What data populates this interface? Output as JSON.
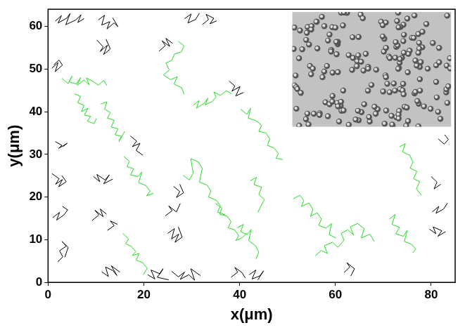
{
  "chart_data": {
    "type": "line",
    "xlabel": "x(μm)",
    "ylabel": "y(μm)",
    "xlim": [
      0,
      85
    ],
    "ylim": [
      0,
      64
    ],
    "xticks": [
      0,
      20,
      40,
      60,
      80
    ],
    "yticks": [
      0,
      10,
      20,
      30,
      40,
      50,
      60
    ],
    "grid": false,
    "series": [
      {
        "color": "#000000",
        "x": [
          1.5,
          2.8,
          2.1,
          3.9,
          4.6,
          3.7,
          5.8,
          6.9,
          6.2,
          7.5
        ],
        "values": [
          61.2,
          62.5,
          60.8,
          61.9,
          63.0,
          60.4,
          61.5,
          62.7,
          60.9,
          61.8
        ]
      },
      {
        "color": "#000000",
        "x": [
          10.5,
          11.8,
          11.2,
          12.9,
          12.3,
          13.8,
          14.6,
          13.5
        ],
        "values": [
          61.5,
          62.6,
          60.3,
          61.1,
          59.4,
          60.8,
          59.9,
          62.0
        ]
      },
      {
        "color": "#000000",
        "x": [
          10.2,
          11.5,
          10.9,
          12.4,
          11.6,
          13.0,
          12.1
        ],
        "values": [
          56.8,
          55.2,
          54.1,
          55.6,
          53.4,
          54.7,
          57.0
        ]
      },
      {
        "color": "#000000",
        "x": [
          0.8,
          2.1,
          1.5,
          3.0,
          2.3,
          1.2
        ],
        "values": [
          50.2,
          51.5,
          49.4,
          50.9,
          52.1,
          51.0
        ]
      },
      {
        "color": "#000000",
        "x": [
          1.5,
          2.9,
          2.2,
          4.0,
          3.1
        ],
        "values": [
          33.0,
          32.1,
          31.4,
          32.6,
          31.8
        ]
      },
      {
        "color": "#000000",
        "x": [
          0.8,
          2.3,
          1.6,
          3.0,
          2.2,
          3.8,
          2.9
        ],
        "values": [
          25.5,
          24.3,
          23.0,
          24.1,
          22.4,
          23.6,
          25.0
        ]
      },
      {
        "color": "#000000",
        "x": [
          9.5,
          10.8,
          10.2,
          11.9,
          12.8,
          11.6,
          13.5
        ],
        "values": [
          24.8,
          23.6,
          25.3,
          24.0,
          25.2,
          23.1,
          24.2
        ]
      },
      {
        "color": "#000000",
        "x": [
          1.0,
          2.4,
          1.8,
          3.3,
          4.1,
          3.0
        ],
        "values": [
          15.2,
          16.4,
          14.6,
          15.8,
          17.0,
          17.8
        ]
      },
      {
        "color": "#000000",
        "x": [
          9.2,
          10.6,
          9.8,
          11.5,
          10.9,
          12.2
        ],
        "values": [
          14.5,
          15.8,
          16.9,
          15.4,
          17.2,
          16.0
        ]
      },
      {
        "color": "#000000",
        "x": [
          2.0,
          3.1,
          2.4,
          3.8,
          2.9,
          4.2,
          3.5
        ],
        "values": [
          4.8,
          6.0,
          7.4,
          8.5,
          9.6,
          8.2,
          5.9
        ]
      },
      {
        "color": "#000000",
        "x": [
          11.2,
          12.6,
          12.0,
          13.5,
          14.4,
          13.2,
          15.0
        ],
        "values": [
          2.5,
          1.4,
          3.6,
          2.8,
          1.6,
          3.9,
          2.4
        ]
      },
      {
        "color": "#000000",
        "x": [
          17.2,
          18.5,
          17.6,
          19.2,
          18.4,
          19.8
        ],
        "values": [
          34.3,
          33.1,
          31.8,
          32.6,
          30.9,
          29.8
        ]
      },
      {
        "color": "#000000",
        "x": [
          20.8,
          22.3,
          21.5,
          23.4,
          24.0,
          22.8,
          25.2
        ],
        "values": [
          1.8,
          0.8,
          2.9,
          2.0,
          3.2,
          1.2,
          0.6
        ]
      },
      {
        "color": "#000000",
        "x": [
          25.0,
          26.4,
          25.8,
          27.3,
          26.5,
          28.0,
          27.2
        ],
        "values": [
          11.5,
          12.6,
          10.2,
          11.3,
          9.4,
          10.6,
          13.0
        ]
      },
      {
        "color": "#000000",
        "x": [
          24.5,
          25.9,
          25.2,
          26.8,
          27.6
        ],
        "values": [
          15.6,
          16.8,
          17.9,
          16.5,
          18.5
        ]
      },
      {
        "color": "#000000",
        "x": [
          26.2,
          27.5,
          26.8,
          28.3,
          27.5
        ],
        "values": [
          22.5,
          21.3,
          19.9,
          21.0,
          23.0
        ]
      },
      {
        "color": "#000000",
        "x": [
          25.8,
          27.2,
          28.5,
          27.6,
          29.4,
          30.6,
          29.8,
          31.8
        ],
        "values": [
          2.6,
          1.3,
          2.4,
          0.7,
          1.8,
          0.5,
          3.2,
          1.6
        ]
      },
      {
        "color": "#000000",
        "x": [
          28.5,
          29.9,
          29.2,
          30.8,
          31.6
        ],
        "values": [
          61.8,
          62.9,
          60.8,
          61.6,
          63.1
        ]
      },
      {
        "color": "#000000",
        "x": [
          32.2,
          33.5,
          33.0,
          34.6,
          33.8,
          35.2
        ],
        "values": [
          60.4,
          61.6,
          62.8,
          61.9,
          60.6,
          61.3
        ]
      },
      {
        "color": "#000000",
        "x": [
          23.2,
          24.5,
          23.8,
          25.4,
          24.6,
          26.0
        ],
        "values": [
          54.2,
          55.5,
          56.6,
          55.3,
          57.2,
          56.0
        ]
      },
      {
        "color": "#000000",
        "x": [
          37.8,
          39.0,
          38.4,
          40.1,
          39.2,
          40.8
        ],
        "values": [
          47.2,
          46.0,
          44.8,
          45.9,
          43.7,
          44.5
        ]
      },
      {
        "color": "#000000",
        "x": [
          38.2,
          39.6,
          39.0,
          40.5,
          41.2
        ],
        "values": [
          1.2,
          2.4,
          3.5,
          2.3,
          1.0
        ]
      },
      {
        "color": "#000000",
        "x": [
          42.0,
          43.4,
          42.6,
          44.2,
          45.0,
          43.8
        ],
        "values": [
          1.8,
          2.9,
          0.8,
          1.5,
          2.7,
          0.6
        ]
      },
      {
        "color": "#000000",
        "x": [
          61.8,
          63.0,
          62.4,
          64.0,
          63.2
        ],
        "values": [
          2.3,
          3.6,
          4.6,
          3.2,
          1.5
        ]
      },
      {
        "color": "#000000",
        "x": [
          79.6,
          81.0,
          80.4,
          82.2,
          81.4,
          83.0
        ],
        "values": [
          12.5,
          11.4,
          13.0,
          12.1,
          10.8,
          11.9
        ]
      },
      {
        "color": "#000000",
        "x": [
          80.2,
          81.6,
          81.0,
          82.6,
          83.4
        ],
        "values": [
          16.5,
          17.8,
          16.2,
          17.2,
          18.6
        ]
      },
      {
        "color": "#000000",
        "x": [
          80.0,
          81.2,
          80.6,
          82.0
        ],
        "values": [
          24.8,
          23.5,
          21.9,
          23.0
        ]
      },
      {
        "color": "#000000",
        "x": [
          81.5,
          82.7,
          83.6,
          82.8
        ],
        "values": [
          33.6,
          32.4,
          33.5,
          34.6
        ]
      },
      {
        "color": "#000000",
        "x": [
          12.4,
          13.8,
          13.0,
          14.5
        ],
        "values": [
          12.2,
          13.3,
          14.4,
          13.6
        ]
      },
      {
        "color": "#22dd22",
        "x": [
          2.9,
          4.2,
          5.0,
          4.4,
          5.9,
          6.8,
          6.1,
          7.5,
          8.6,
          8.0,
          9.4,
          10.5,
          11.6,
          12.3
        ],
        "values": [
          47.8,
          46.6,
          48.3,
          47.0,
          46.5,
          48.0,
          46.2,
          47.4,
          46.3,
          47.9,
          47.1,
          46.2,
          47.3,
          46.1
        ]
      },
      {
        "color": "#22dd22",
        "x": [
          5.5,
          6.8,
          6.2,
          7.5,
          7.0,
          8.3,
          7.6,
          8.9,
          8.2,
          9.6,
          10.1
        ],
        "values": [
          44.2,
          43.6,
          42.1,
          41.5,
          40.0,
          40.8,
          39.2,
          38.9,
          37.8,
          37.2,
          38.4
        ]
      },
      {
        "color": "#22dd22",
        "x": [
          11.0,
          12.3,
          11.8,
          13.0,
          12.4,
          13.8,
          13.2,
          14.6,
          14.0,
          15.3,
          14.8,
          16.0
        ],
        "values": [
          41.8,
          42.3,
          40.6,
          39.8,
          38.5,
          38.0,
          36.4,
          36.0,
          34.6,
          34.2,
          33.0,
          35.4
        ]
      },
      {
        "color": "#22dd22",
        "x": [
          15.8,
          17.0,
          16.5,
          17.9,
          17.2,
          18.8,
          19.6,
          18.9,
          20.4,
          21.3,
          20.6,
          22.0
        ],
        "values": [
          29.5,
          28.4,
          27.1,
          26.6,
          25.2,
          24.8,
          25.9,
          23.4,
          22.7,
          21.4,
          20.3,
          20.9
        ]
      },
      {
        "color": "#22dd22",
        "x": [
          15.6,
          16.8,
          16.2,
          17.4,
          18.3,
          17.6,
          19.0,
          18.4,
          19.8,
          20.7,
          19.9
        ],
        "values": [
          11.5,
          10.2,
          9.1,
          8.4,
          7.2,
          6.3,
          6.8,
          5.2,
          4.6,
          3.3,
          1.8
        ]
      },
      {
        "color": "#22dd22",
        "x": [
          27.2,
          28.4,
          27.8,
          26.4,
          25.8,
          24.6,
          25.3,
          24.1,
          25.6,
          27.0,
          26.3,
          27.9,
          28.4
        ],
        "values": [
          56.5,
          55.4,
          54.0,
          53.5,
          52.0,
          51.4,
          49.8,
          48.6,
          47.5,
          48.2,
          46.5,
          45.6,
          44.1
        ]
      },
      {
        "color": "#22dd22",
        "x": [
          30.3,
          31.5,
          31.0,
          32.6,
          33.4,
          32.8,
          34.3,
          35.1,
          34.6,
          36.0,
          37.2,
          38.3
        ],
        "values": [
          41.5,
          42.6,
          40.8,
          42.0,
          43.2,
          41.6,
          42.4,
          43.5,
          44.6,
          43.8,
          44.9,
          44.2
        ]
      },
      {
        "color": "#22dd22",
        "x": [
          40.2,
          41.5,
          42.3,
          41.8,
          43.4,
          44.6,
          44.0,
          45.5,
          46.3,
          45.8,
          47.2,
          48.1,
          47.6,
          49.0
        ],
        "values": [
          40.6,
          39.4,
          40.8,
          38.5,
          37.9,
          36.8,
          35.4,
          35.0,
          33.6,
          32.1,
          31.5,
          30.2,
          29.1,
          28.8
        ]
      },
      {
        "color": "#22dd22",
        "x": [
          28.2,
          29.5,
          30.3,
          29.8,
          31.4,
          32.2,
          31.6,
          33.2,
          34.0,
          33.5,
          35.2,
          36.0,
          35.4,
          37.0
        ],
        "values": [
          25.1,
          24.0,
          25.6,
          29.0,
          28.2,
          26.7,
          23.5,
          22.8,
          21.4,
          20.0,
          19.2,
          17.9,
          16.5,
          15.8
        ]
      },
      {
        "color": "#22dd22",
        "x": [
          35.0,
          36.3,
          35.8,
          37.4,
          38.2,
          37.6,
          39.0,
          39.8,
          39.2,
          40.6,
          41.5
        ],
        "values": [
          18.5,
          17.4,
          16.0,
          15.5,
          14.2,
          12.8,
          12.3,
          10.9,
          9.8,
          10.5,
          11.6
        ]
      },
      {
        "color": "#22dd22",
        "x": [
          39.5,
          40.8,
          40.2,
          41.6,
          42.4,
          41.9,
          43.3,
          44.0,
          43.4
        ],
        "values": [
          12.8,
          13.6,
          11.9,
          11.2,
          12.4,
          9.8,
          8.6,
          7.1,
          5.5
        ]
      },
      {
        "color": "#22dd22",
        "x": [
          42.2,
          43.5,
          43.0,
          44.6,
          44.0,
          45.2,
          44.5,
          43.8
        ],
        "values": [
          23.8,
          24.6,
          22.9,
          22.3,
          20.6,
          19.4,
          18.0,
          16.4
        ]
      },
      {
        "color": "#22dd22",
        "x": [
          51.2,
          52.6,
          53.4,
          52.9,
          54.5,
          55.3,
          54.8,
          56.2,
          57.1,
          56.5,
          58.0,
          59.2,
          58.7,
          60.1
        ],
        "values": [
          19.6,
          20.4,
          19.2,
          17.8,
          18.6,
          17.1,
          15.5,
          16.3,
          14.8,
          13.4,
          12.7,
          13.8,
          11.2,
          10.4
        ]
      },
      {
        "color": "#22dd22",
        "x": [
          55.8,
          57.0,
          58.3,
          57.7,
          59.4,
          60.5,
          61.8,
          61.2,
          62.6,
          63.8,
          63.1,
          64.6,
          66.0,
          65.4,
          67.2,
          68.1
        ],
        "values": [
          6.2,
          7.5,
          6.8,
          8.6,
          9.4,
          8.2,
          9.9,
          11.5,
          12.3,
          11.1,
          13.0,
          13.8,
          12.6,
          10.4,
          11.3,
          9.6
        ]
      },
      {
        "color": "#22dd22",
        "x": [
          71.2,
          72.5,
          71.8,
          73.4,
          72.6,
          74.2,
          75.0,
          74.4,
          75.8,
          76.8,
          76.1
        ],
        "values": [
          14.8,
          15.9,
          13.6,
          12.9,
          11.4,
          10.8,
          12.2,
          9.6,
          9.0,
          7.8,
          6.9
        ]
      },
      {
        "color": "#22dd22",
        "x": [
          73.4,
          74.6,
          74.0,
          75.5,
          76.2,
          75.6,
          77.0,
          76.3,
          77.6,
          76.9,
          78.0
        ],
        "values": [
          31.8,
          32.5,
          30.6,
          29.8,
          28.2,
          26.8,
          26.0,
          24.3,
          23.6,
          21.9,
          20.4
        ]
      }
    ]
  }
}
